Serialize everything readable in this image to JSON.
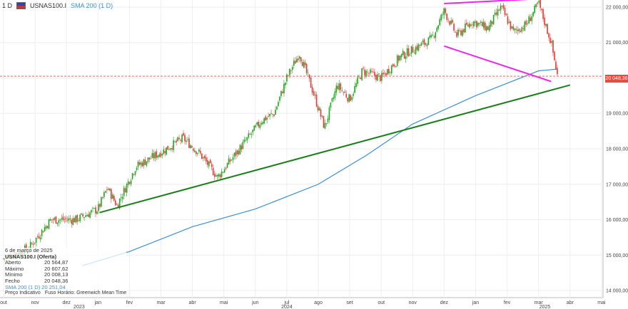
{
  "header": {
    "timeframe": "1 D",
    "symbol": "USNAS100.I",
    "indicator": "SMA 200 (1 D)"
  },
  "legend": {
    "date": "6 de março de 2025",
    "title": "USNAS100.I (Oferta)",
    "rows": [
      {
        "label": "Aberto",
        "value": "20 564,87"
      },
      {
        "label": "Máximo",
        "value": "20 607,62"
      },
      {
        "label": "Mínimo",
        "value": "20 008,13"
      },
      {
        "label": "Fecho",
        "value": "20 048,36"
      }
    ],
    "sma_label": "SMA 200 (1 D)",
    "sma_value": "20 251,04",
    "footer": [
      "Preço Indicativo",
      "Fuso Horário: Greenwich Mean Time"
    ]
  },
  "price_tag": "20 048,36",
  "colors": {
    "up": "#1fa51f",
    "down": "#e53935",
    "sma": "#3d8fd1",
    "trend_green": "#1a7f1a",
    "trend_magenta": "#ee22ee"
  },
  "chart_data": {
    "type": "candlestick",
    "y_ticks": [
      14000,
      15000,
      16000,
      17000,
      18000,
      19000,
      20000,
      21000,
      22000
    ],
    "y_tick_labels": [
      "14 000,00",
      "15 000,00",
      "16 000,00",
      "17 000,00",
      "18 000,00",
      "19 000,00",
      "20 000,00",
      "21 000,00",
      "22 000,00"
    ],
    "ylim": [
      13800,
      22200
    ],
    "x_ticks": [
      "out",
      "nov",
      "dez",
      "jan",
      "fev",
      "mar",
      "abr",
      "mai",
      "jun",
      "jul",
      "ago",
      "set",
      "out",
      "nov",
      "dez",
      "jan",
      "fev",
      "mar",
      "abr",
      "mai"
    ],
    "year_labels": [
      "2023",
      "2024",
      "2025"
    ],
    "current_price": 20048.36,
    "close_path": [
      {
        "month": 0.0,
        "close": 14900
      },
      {
        "month": 0.8,
        "close": 15200
      },
      {
        "month": 1.5,
        "close": 16000
      },
      {
        "month": 2.3,
        "close": 16000
      },
      {
        "month": 3.0,
        "close": 16300
      },
      {
        "month": 3.3,
        "close": 16900
      },
      {
        "month": 3.6,
        "close": 16400
      },
      {
        "month": 4.2,
        "close": 17500
      },
      {
        "month": 5.0,
        "close": 17900
      },
      {
        "month": 5.7,
        "close": 18300
      },
      {
        "month": 6.2,
        "close": 17900
      },
      {
        "month": 6.8,
        "close": 17200
      },
      {
        "month": 7.5,
        "close": 18000
      },
      {
        "month": 8.2,
        "close": 18800
      },
      {
        "month": 8.6,
        "close": 19000
      },
      {
        "month": 9.0,
        "close": 20000
      },
      {
        "month": 9.4,
        "close": 20700
      },
      {
        "month": 9.8,
        "close": 19700
      },
      {
        "month": 10.2,
        "close": 18600
      },
      {
        "month": 10.6,
        "close": 19800
      },
      {
        "month": 11.0,
        "close": 19400
      },
      {
        "month": 11.4,
        "close": 20200
      },
      {
        "month": 12.0,
        "close": 20000
      },
      {
        "month": 12.6,
        "close": 20600
      },
      {
        "month": 13.2,
        "close": 20900
      },
      {
        "month": 13.6,
        "close": 21100
      },
      {
        "month": 14.0,
        "close": 21900
      },
      {
        "month": 14.4,
        "close": 21200
      },
      {
        "month": 14.9,
        "close": 21600
      },
      {
        "month": 15.4,
        "close": 21400
      },
      {
        "month": 15.8,
        "close": 22000
      },
      {
        "month": 16.2,
        "close": 21300
      },
      {
        "month": 16.6,
        "close": 21500
      },
      {
        "month": 17.0,
        "close": 22100
      },
      {
        "month": 17.4,
        "close": 21000
      },
      {
        "month": 17.6,
        "close": 20048
      }
    ],
    "sma200": [
      {
        "month": 2.5,
        "value": 14700
      },
      {
        "month": 4.0,
        "value": 15100
      },
      {
        "month": 6.0,
        "value": 15800
      },
      {
        "month": 8.0,
        "value": 16300
      },
      {
        "month": 10.0,
        "value": 17000
      },
      {
        "month": 11.5,
        "value": 17800
      },
      {
        "month": 13.0,
        "value": 18700
      },
      {
        "month": 15.0,
        "value": 19500
      },
      {
        "month": 17.0,
        "value": 20200
      },
      {
        "month": 17.6,
        "value": 20251
      }
    ],
    "trendlines": [
      {
        "name": "support",
        "color": "green",
        "from": {
          "month": 3.05,
          "price": 16200
        },
        "to": {
          "month": 18.0,
          "price": 19800
        }
      },
      {
        "name": "channel-top",
        "color": "magenta",
        "from": {
          "month": 14.0,
          "price": 22100
        },
        "to": {
          "month": 18.5,
          "price": 22300
        }
      },
      {
        "name": "channel-bottom",
        "color": "magenta",
        "from": {
          "month": 14.0,
          "price": 20900
        },
        "to": {
          "month": 17.4,
          "price": 19900
        }
      }
    ]
  }
}
